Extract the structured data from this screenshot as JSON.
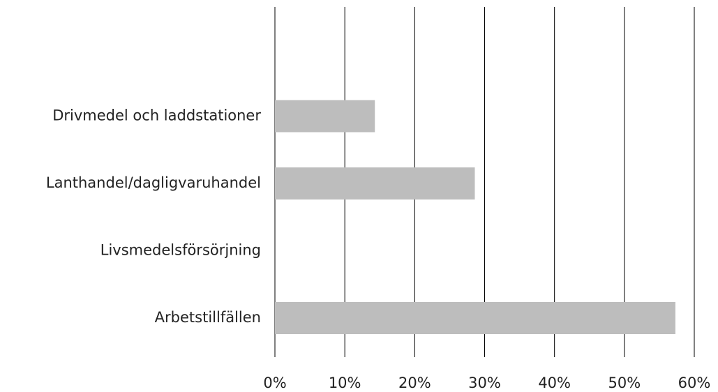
{
  "chart_data": {
    "type": "bar",
    "orientation": "horizontal",
    "categories": [
      null,
      "Drivmedel och laddstationer",
      "Lanthandel/dagligvaruhandel",
      "Livsmedelsförsörjning",
      "Arbetstillfällen"
    ],
    "values": [
      null,
      14.3,
      28.6,
      0,
      57.3
    ],
    "color": "#bdbdbd",
    "xlim": [
      0,
      60
    ],
    "xticks": [
      {
        "value": 0,
        "label": "0%"
      },
      {
        "value": 10,
        "label": "10%"
      },
      {
        "value": 20,
        "label": "20%"
      },
      {
        "value": 30,
        "label": "30%"
      },
      {
        "value": 40,
        "label": "40%"
      },
      {
        "value": 50,
        "label": "50%"
      },
      {
        "value": 60,
        "label": "60%"
      }
    ],
    "grid": true
  }
}
